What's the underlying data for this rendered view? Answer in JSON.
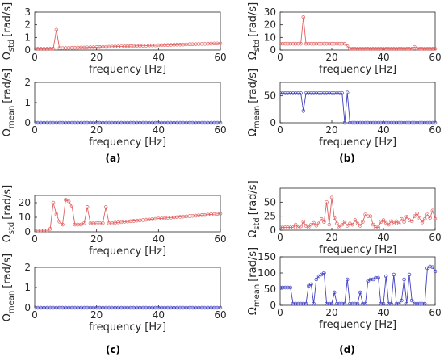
{
  "figure": {
    "panel_captions": [
      "(a)",
      "(b)",
      "(c)",
      "(d)"
    ],
    "xlabel": "frequency [Hz]",
    "unit_label": "[rad/s]",
    "std_symbol": "Ω",
    "std_sub": "std",
    "mean_symbol": "Ω",
    "mean_sub": "mean"
  },
  "colors": {
    "std_series": "#e06060",
    "mean_series": "#4040c0",
    "axes": "#262626"
  },
  "chart_data": [
    {
      "panel": "(a)",
      "subplot": "top",
      "type": "line",
      "xlabel": "frequency [Hz]",
      "ylabel": "Ω_std [rad/s]",
      "xlim": [
        0,
        60
      ],
      "ylim": [
        0,
        3
      ],
      "xticks": [
        0,
        20,
        40,
        60
      ],
      "yticks": [
        0,
        1,
        2,
        3
      ],
      "marker": "circle",
      "color": "#e06060",
      "grid": false,
      "x": [
        0,
        1,
        2,
        3,
        4,
        5,
        6,
        7,
        8,
        9,
        10,
        11,
        12,
        13,
        14,
        15,
        16,
        17,
        18,
        19,
        20,
        21,
        22,
        23,
        24,
        25,
        26,
        27,
        28,
        29,
        30,
        31,
        32,
        33,
        34,
        35,
        36,
        37,
        38,
        39,
        40,
        41,
        42,
        43,
        44,
        45,
        46,
        47,
        48,
        49,
        50,
        51,
        52,
        53,
        54,
        55,
        56,
        57,
        58,
        59,
        60
      ],
      "y": [
        0.1,
        0.1,
        0.1,
        0.1,
        0.1,
        0.1,
        0.1,
        1.6,
        0.15,
        0.15,
        0.16,
        0.17,
        0.18,
        0.18,
        0.19,
        0.2,
        0.2,
        0.21,
        0.22,
        0.22,
        0.23,
        0.24,
        0.25,
        0.25,
        0.26,
        0.27,
        0.28,
        0.28,
        0.29,
        0.3,
        0.31,
        0.31,
        0.32,
        0.33,
        0.34,
        0.34,
        0.35,
        0.36,
        0.37,
        0.37,
        0.38,
        0.39,
        0.4,
        0.4,
        0.41,
        0.42,
        0.43,
        0.43,
        0.44,
        0.45,
        0.46,
        0.46,
        0.47,
        0.48,
        0.49,
        0.49,
        0.5,
        0.51,
        0.52,
        0.52,
        0.53
      ]
    },
    {
      "panel": "(a)",
      "subplot": "bottom",
      "type": "line",
      "xlabel": "frequency [Hz]",
      "ylabel": "Ω_mean [rad/s]",
      "xlim": [
        0,
        60
      ],
      "ylim": [
        0,
        2
      ],
      "xticks": [
        0,
        20,
        40,
        60
      ],
      "yticks": [
        0,
        1,
        2
      ],
      "marker": "circle",
      "color": "#4040c0",
      "grid": false,
      "x": [
        0,
        1,
        2,
        3,
        4,
        5,
        6,
        7,
        8,
        9,
        10,
        11,
        12,
        13,
        14,
        15,
        16,
        17,
        18,
        19,
        20,
        21,
        22,
        23,
        24,
        25,
        26,
        27,
        28,
        29,
        30,
        31,
        32,
        33,
        34,
        35,
        36,
        37,
        38,
        39,
        40,
        41,
        42,
        43,
        44,
        45,
        46,
        47,
        48,
        49,
        50,
        51,
        52,
        53,
        54,
        55,
        56,
        57,
        58,
        59,
        60
      ],
      "y": [
        0,
        0,
        0,
        0,
        0,
        0,
        0,
        0,
        0,
        0,
        0,
        0,
        0,
        0,
        0,
        0,
        0,
        0,
        0,
        0,
        0,
        0,
        0,
        0,
        0,
        0,
        0,
        0,
        0,
        0,
        0,
        0,
        0,
        0,
        0,
        0,
        0,
        0,
        0,
        0,
        0,
        0,
        0,
        0,
        0,
        0,
        0,
        0,
        0,
        0,
        0,
        0,
        0,
        0,
        0,
        0,
        0,
        0,
        0,
        0,
        0
      ]
    },
    {
      "panel": "(b)",
      "subplot": "top",
      "type": "line",
      "xlabel": "frequency [Hz]",
      "ylabel": "Ω_std [rad/s]",
      "xlim": [
        0,
        60
      ],
      "ylim": [
        0,
        30
      ],
      "xticks": [
        0,
        20,
        40,
        60
      ],
      "yticks": [
        0,
        10,
        20,
        30
      ],
      "marker": "circle",
      "color": "#e06060",
      "grid": false,
      "x": [
        0,
        1,
        2,
        3,
        4,
        5,
        6,
        7,
        8,
        9,
        10,
        11,
        12,
        13,
        14,
        15,
        16,
        17,
        18,
        19,
        20,
        21,
        22,
        23,
        24,
        25,
        26,
        27,
        28,
        29,
        30,
        31,
        32,
        33,
        34,
        35,
        36,
        37,
        38,
        39,
        40,
        41,
        42,
        43,
        44,
        45,
        46,
        47,
        48,
        49,
        50,
        51,
        52,
        53,
        54,
        55,
        56,
        57,
        58,
        59,
        60
      ],
      "y": [
        5,
        5,
        5,
        5,
        5,
        5,
        5,
        5,
        5,
        26,
        5,
        5,
        5,
        5,
        5,
        5,
        5,
        5,
        5,
        5,
        5,
        5,
        5,
        5,
        5,
        5,
        3,
        1,
        1,
        1,
        1,
        1,
        1,
        1,
        1,
        1,
        1,
        1,
        1,
        1,
        1,
        1,
        1,
        1,
        1,
        1,
        1,
        1,
        1,
        1,
        1,
        1,
        2.5,
        1,
        1,
        1,
        1,
        1,
        1,
        1,
        1
      ]
    },
    {
      "panel": "(b)",
      "subplot": "bottom",
      "type": "line",
      "xlabel": "frequency [Hz]",
      "ylabel": "Ω_mean [rad/s]",
      "xlim": [
        0,
        60
      ],
      "ylim": [
        0,
        75
      ],
      "xticks": [
        0,
        20,
        40,
        60
      ],
      "yticks": [
        0,
        50
      ],
      "marker": "circle",
      "color": "#4040c0",
      "grid": false,
      "x": [
        0,
        1,
        2,
        3,
        4,
        5,
        6,
        7,
        8,
        9,
        10,
        11,
        12,
        13,
        14,
        15,
        16,
        17,
        18,
        19,
        20,
        21,
        22,
        23,
        24,
        25,
        26,
        27,
        28,
        29,
        30,
        31,
        32,
        33,
        34,
        35,
        36,
        37,
        38,
        39,
        40,
        41,
        42,
        43,
        44,
        45,
        46,
        47,
        48,
        49,
        50,
        51,
        52,
        53,
        54,
        55,
        56,
        57,
        58,
        59,
        60
      ],
      "y": [
        55,
        55,
        55,
        55,
        55,
        55,
        55,
        55,
        55,
        22,
        55,
        55,
        55,
        55,
        55,
        55,
        55,
        55,
        55,
        55,
        55,
        55,
        55,
        55,
        55,
        0,
        56,
        0,
        0,
        0,
        0,
        0,
        0,
        0,
        0,
        0,
        0,
        0,
        0,
        0,
        0,
        0,
        0,
        0,
        0,
        0,
        0,
        0,
        0,
        0,
        0,
        0,
        0,
        0,
        0,
        0,
        0,
        0,
        0,
        0,
        0
      ]
    },
    {
      "panel": "(c)",
      "subplot": "top",
      "type": "line",
      "xlabel": "frequency [Hz]",
      "ylabel": "Ω_std [rad/s]",
      "xlim": [
        0,
        60
      ],
      "ylim": [
        0,
        25
      ],
      "xticks": [
        0,
        20,
        40,
        60
      ],
      "yticks": [
        0,
        10,
        20
      ],
      "marker": "circle",
      "color": "#e06060",
      "grid": false,
      "x": [
        0,
        1,
        2,
        3,
        4,
        5,
        6,
        7,
        8,
        9,
        10,
        11,
        12,
        13,
        14,
        15,
        16,
        17,
        18,
        19,
        20,
        21,
        22,
        23,
        24,
        25,
        26,
        27,
        28,
        29,
        30,
        31,
        32,
        33,
        34,
        35,
        36,
        37,
        38,
        39,
        40,
        41,
        42,
        43,
        44,
        45,
        46,
        47,
        48,
        49,
        50,
        51,
        52,
        53,
        54,
        55,
        56,
        57,
        58,
        59,
        60
      ],
      "y": [
        1,
        1,
        1,
        1,
        1,
        2,
        20,
        12,
        7,
        5,
        22,
        21,
        18,
        5,
        5,
        5,
        6,
        17,
        6,
        6,
        6,
        6,
        6,
        17,
        6,
        6,
        6.3,
        6.5,
        6.7,
        6.9,
        7.1,
        7.3,
        7.5,
        7.7,
        7.9,
        8.1,
        8.3,
        8.5,
        8.7,
        8.9,
        9.1,
        9.2,
        9.4,
        9.6,
        9.8,
        10,
        10.1,
        10.3,
        10.5,
        10.6,
        10.8,
        11,
        11.1,
        11.3,
        11.5,
        11.6,
        11.8,
        12,
        12.1,
        12.3,
        12.5
      ]
    },
    {
      "panel": "(c)",
      "subplot": "bottom",
      "type": "line",
      "xlabel": "frequency [Hz]",
      "ylabel": "Ω_mean [rad/s]",
      "xlim": [
        0,
        60
      ],
      "ylim": [
        0,
        2
      ],
      "xticks": [
        0,
        20,
        40,
        60
      ],
      "yticks": [
        0,
        1,
        2
      ],
      "marker": "circle",
      "color": "#4040c0",
      "grid": false,
      "x": [
        0,
        1,
        2,
        3,
        4,
        5,
        6,
        7,
        8,
        9,
        10,
        11,
        12,
        13,
        14,
        15,
        16,
        17,
        18,
        19,
        20,
        21,
        22,
        23,
        24,
        25,
        26,
        27,
        28,
        29,
        30,
        31,
        32,
        33,
        34,
        35,
        36,
        37,
        38,
        39,
        40,
        41,
        42,
        43,
        44,
        45,
        46,
        47,
        48,
        49,
        50,
        51,
        52,
        53,
        54,
        55,
        56,
        57,
        58,
        59,
        60
      ],
      "y": [
        0,
        0,
        0,
        0,
        0,
        0,
        0,
        0,
        0,
        0,
        0,
        0,
        0,
        0,
        0,
        0,
        0,
        0,
        0,
        0,
        0,
        0,
        0,
        0,
        0,
        0,
        0,
        0,
        0,
        0,
        0,
        0,
        0,
        0,
        0,
        0,
        0,
        0,
        0,
        0,
        0,
        0,
        0,
        0,
        0,
        0,
        0,
        0,
        0,
        0,
        0,
        0,
        0,
        0,
        0,
        0,
        0,
        0,
        0,
        0,
        0
      ]
    },
    {
      "panel": "(d)",
      "subplot": "top",
      "type": "line",
      "xlabel": "frequency [Hz]",
      "ylabel": "Ω_std [rad/s]",
      "xlim": [
        0,
        60
      ],
      "ylim": [
        0,
        75
      ],
      "xticks": [
        0,
        20,
        40,
        60
      ],
      "yticks": [
        0,
        25,
        50
      ],
      "marker": "circle",
      "color": "#e06060",
      "grid": false,
      "x": [
        0,
        1,
        2,
        3,
        4,
        5,
        6,
        7,
        8,
        9,
        10,
        11,
        12,
        13,
        14,
        15,
        16,
        17,
        18,
        19,
        20,
        21,
        22,
        23,
        24,
        25,
        26,
        27,
        28,
        29,
        30,
        31,
        32,
        33,
        34,
        35,
        36,
        37,
        38,
        39,
        40,
        41,
        42,
        43,
        44,
        45,
        46,
        47,
        48,
        49,
        50,
        51,
        52,
        53,
        54,
        55,
        56,
        57,
        58,
        59,
        60
      ],
      "y": [
        5,
        5,
        5,
        5,
        5,
        5,
        10,
        5,
        7,
        15,
        8,
        5,
        10,
        13,
        8,
        12,
        20,
        15,
        50,
        10,
        58,
        22,
        12,
        5,
        10,
        15,
        8,
        12,
        10,
        18,
        12,
        8,
        15,
        28,
        25,
        25,
        10,
        5,
        5,
        15,
        18,
        13,
        10,
        16,
        12,
        16,
        12,
        20,
        15,
        24,
        18,
        16,
        25,
        30,
        21,
        14,
        20,
        28,
        22,
        35,
        20
      ]
    },
    {
      "panel": "(d)",
      "subplot": "bottom",
      "type": "line",
      "xlabel": "frequency [Hz]",
      "ylabel": "Ω_mean [rad/s]",
      "xlim": [
        0,
        60
      ],
      "ylim": [
        0,
        150
      ],
      "xticks": [
        0,
        20,
        40,
        60
      ],
      "yticks": [
        0,
        50,
        100,
        150
      ],
      "marker": "circle",
      "color": "#4040c0",
      "grid": false,
      "x": [
        0,
        1,
        2,
        3,
        4,
        5,
        6,
        7,
        8,
        9,
        10,
        11,
        12,
        13,
        14,
        15,
        16,
        17,
        18,
        19,
        20,
        21,
        22,
        23,
        24,
        25,
        26,
        27,
        28,
        29,
        30,
        31,
        32,
        33,
        34,
        35,
        36,
        37,
        38,
        39,
        40,
        41,
        42,
        43,
        44,
        45,
        46,
        47,
        48,
        49,
        50,
        51,
        52,
        53,
        54,
        55,
        56,
        57,
        58,
        59,
        60
      ],
      "y": [
        55,
        55,
        55,
        55,
        55,
        5,
        5,
        5,
        5,
        5,
        5,
        60,
        65,
        5,
        80,
        90,
        95,
        100,
        5,
        5,
        5,
        40,
        5,
        5,
        5,
        5,
        80,
        5,
        5,
        5,
        5,
        40,
        5,
        5,
        75,
        80,
        80,
        85,
        85,
        5,
        5,
        90,
        5,
        5,
        95,
        5,
        5,
        15,
        80,
        5,
        95,
        15,
        5,
        5,
        5,
        5,
        5,
        115,
        120,
        118,
        105
      ]
    }
  ]
}
